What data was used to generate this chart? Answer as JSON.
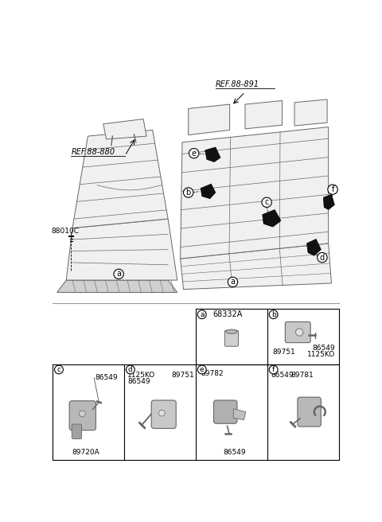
{
  "bg_color": "#ffffff",
  "line_color": "#000000",
  "seat_color": "#f0f0f0",
  "seat_line_color": "#666666",
  "dark_part_color": "#1a1a1a",
  "ref1_text": "REF.88-880",
  "ref2_text": "REF.88-891",
  "part_88010C": "88010C",
  "part_numbers": {
    "a_top": "68332A",
    "b_parts": [
      "89751",
      "86549",
      "1125KO"
    ],
    "c_parts": [
      "86549",
      "89720A"
    ],
    "d_parts": [
      "1125KO",
      "89751",
      "86549"
    ],
    "e_parts": [
      "89782",
      "86549"
    ],
    "f_parts": [
      "86549",
      "89781"
    ]
  }
}
